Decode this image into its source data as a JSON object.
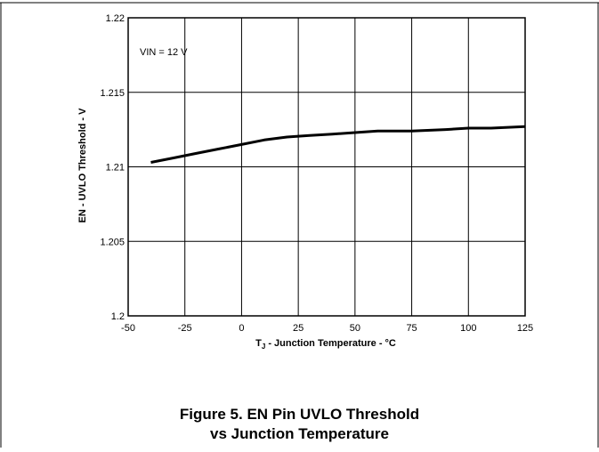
{
  "caption": {
    "line1": "Figure 5. EN Pin UVLO Threshold",
    "line2": "vs Junction Temperature"
  },
  "chart_data": {
    "type": "line",
    "title": "",
    "xlabel_main": "T",
    "xlabel_sub": "J",
    "xlabel_rest": " - Junction Temperature - °C",
    "ylabel": "EN - UVLO Threshold - V",
    "annotation": "VIN = 12 V",
    "xlim": [
      -50,
      125
    ],
    "ylim": [
      1.2,
      1.22
    ],
    "xticks": [
      -50,
      -25,
      0,
      25,
      50,
      75,
      100,
      125
    ],
    "xtick_labels": [
      "-50",
      "-25",
      "0",
      "25",
      "50",
      "75",
      "100",
      "125"
    ],
    "yticks": [
      1.2,
      1.205,
      1.21,
      1.215,
      1.22
    ],
    "ytick_labels": [
      "1.2",
      "1.205",
      "1.21",
      "1.215",
      "1.22"
    ],
    "grid": true,
    "line_color": "#000000",
    "series": [
      {
        "x": [
          -40,
          -30,
          -20,
          -10,
          0,
          10,
          20,
          30,
          40,
          50,
          60,
          75,
          90,
          100,
          110,
          125
        ],
        "y": [
          1.2103,
          1.2106,
          1.2109,
          1.2112,
          1.2115,
          1.2118,
          1.212,
          1.2121,
          1.2122,
          1.2123,
          1.2124,
          1.2124,
          1.2125,
          1.2126,
          1.2126,
          1.2127
        ]
      }
    ]
  }
}
